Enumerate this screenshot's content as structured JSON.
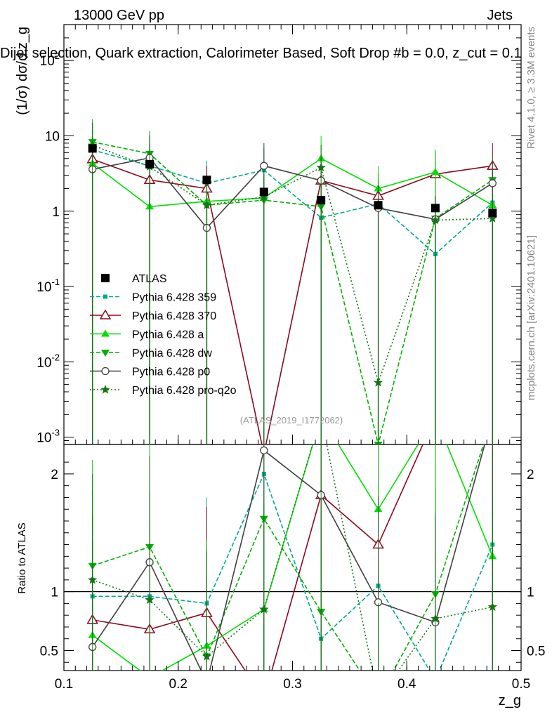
{
  "header": {
    "energy_label": "13000 GeV pp",
    "category_label": "Jets",
    "plot_title": "Dijet selection, Quark extraction, Calorimeter Based, Soft Drop #b = 0.0, z_cut = 0.1",
    "rivet_label": "Rivet 4.1.0, ≥ 3.3M events",
    "mcplots_label": "mcplots.cern.ch [arXiv:2401.10621]",
    "analysis_id": "(ATLAS_2019_I1772062)"
  },
  "chart_data": {
    "type": "line",
    "title": "Dijet selection, Quark extraction, Calorimeter Based, Soft Drop #b = 0.0, z_cut = 0.1",
    "xlabel": "z_g",
    "ylabel": "(1/σ) dσ/d z_g",
    "ratio_ylabel": "Ratio to ATLAS",
    "xlim": [
      0.1,
      0.5
    ],
    "ylim": [
      0.0008,
      300
    ],
    "yscale": "log",
    "ratio_ylim": [
      0.33,
      2.25
    ],
    "x_ticks": [
      "0.1",
      "0.2",
      "0.3",
      "0.4",
      "0.5"
    ],
    "y_ticks": [
      "10^{-3}",
      "10^{-2}",
      "10^{-1}",
      "1",
      "10",
      "10^{2}"
    ],
    "ratio_ticks": [
      "0.5",
      "1",
      "2"
    ],
    "x": [
      0.125,
      0.175,
      0.225,
      0.275,
      0.325,
      0.375,
      0.425,
      0.475
    ],
    "reference": {
      "name": "ATLAS",
      "color": "#000000",
      "values": [
        6.8,
        4.2,
        2.6,
        1.8,
        1.4,
        1.2,
        1.1,
        0.95
      ]
    },
    "series": [
      {
        "name": "Pythia 6.428 359",
        "color": "#00a88f",
        "marker": "square",
        "dash": "dashed",
        "values": [
          6.5,
          4.0,
          2.35,
          3.5,
          0.82,
          1.25,
          0.27,
          1.3
        ],
        "ratio": [
          0.96,
          0.96,
          0.9,
          2.0,
          0.6,
          1.05,
          0.25,
          1.4
        ]
      },
      {
        "name": "Pythia 6.428 370",
        "color": "#8b0a1e",
        "marker": "open-triangle",
        "dash": "solid",
        "values": [
          4.9,
          2.6,
          2.0,
          0.0006,
          2.55,
          1.6,
          3.1,
          4.0
        ],
        "ratio": [
          0.76,
          0.68,
          0.82,
          0.0,
          1.82,
          1.4,
          2.85,
          4.3
        ]
      },
      {
        "name": "Pythia 6.428 a",
        "color": "#00e000",
        "marker": "triangle",
        "dash": "solid",
        "values": [
          4.3,
          1.15,
          1.35,
          1.5,
          5.0,
          2.0,
          3.3,
          1.2
        ],
        "ratio": [
          0.63,
          0.27,
          0.54,
          0.85,
          3.6,
          1.7,
          3.0,
          1.3
        ]
      },
      {
        "name": "Pythia 6.428 dw",
        "color": "#00b000",
        "marker": "down-triangle",
        "dash": "dashed",
        "values": [
          8.3,
          5.8,
          1.2,
          1.4,
          1.15,
          0.0008,
          0.8,
          2.6
        ],
        "ratio": [
          1.22,
          1.38,
          0.45,
          1.62,
          0.83,
          0.0,
          0.98,
          2.8
        ]
      },
      {
        "name": "Pythia 6.428 p0",
        "color": "#404040",
        "marker": "open-circle",
        "dash": "solid",
        "values": [
          3.6,
          5.1,
          0.6,
          4.0,
          2.55,
          1.1,
          0.78,
          2.35
        ],
        "ratio": [
          0.53,
          1.25,
          0.23,
          2.2,
          1.82,
          0.91,
          0.74,
          2.5
        ]
      },
      {
        "name": "Pythia 6.428 pro-q2o",
        "color": "#157515",
        "marker": "star",
        "dash": "dotted",
        "values": [
          7.5,
          3.9,
          1.2,
          1.55,
          3.8,
          0.0053,
          0.76,
          0.8
        ],
        "ratio": [
          1.1,
          0.93,
          0.45,
          0.85,
          2.7,
          0.004,
          0.77,
          0.87
        ]
      }
    ]
  }
}
